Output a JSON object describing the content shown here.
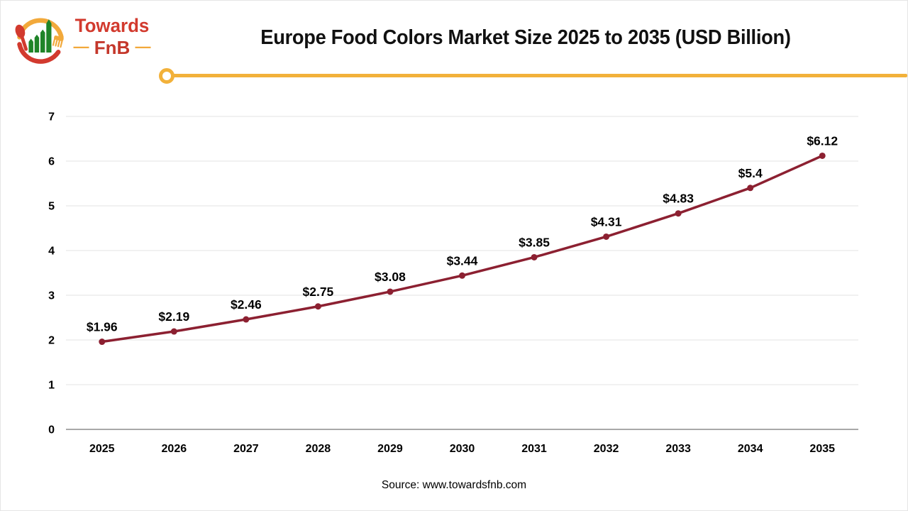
{
  "header": {
    "logo": {
      "brand_line1": "Towards",
      "brand_line2": "FnB",
      "dash": "—"
    },
    "title": "Europe Food Colors Market Size 2025 to 2035 (USD Billion)"
  },
  "chart_data": {
    "type": "line",
    "title": "Europe Food Colors Market Size 2025 to 2035 (USD Billion)",
    "categories": [
      "2025",
      "2026",
      "2027",
      "2028",
      "2029",
      "2030",
      "2031",
      "2032",
      "2033",
      "2034",
      "2035"
    ],
    "series": [
      {
        "name": "Europe Food Colors Market Size (USD Billion)",
        "values": [
          1.96,
          2.19,
          2.46,
          2.75,
          3.08,
          3.44,
          3.85,
          4.31,
          4.83,
          5.4,
          6.12
        ],
        "labels": [
          "$1.96",
          "$2.19",
          "$2.46",
          "$2.75",
          "$3.08",
          "$3.44",
          "$3.85",
          "$4.31",
          "$4.83",
          "$5.4",
          "$6.12"
        ],
        "color": "#8c2031"
      }
    ],
    "xlabel": "",
    "ylabel": "",
    "ylim": [
      0,
      7
    ],
    "y_ticks": [
      0,
      1,
      2,
      3,
      4,
      5,
      6,
      7
    ],
    "grid": true,
    "legend": "none",
    "marker": "circle"
  },
  "footer": {
    "source": "Source: www.towardsfnb.com"
  },
  "colors": {
    "accent_yellow": "#f2b13a",
    "line_maroon": "#8c2031",
    "gridline": "#e3e3e3",
    "axis_line": "#a8a8a8",
    "logo_red": "#d23a2e",
    "logo_green": "#1f8428",
    "text": "#000000"
  }
}
